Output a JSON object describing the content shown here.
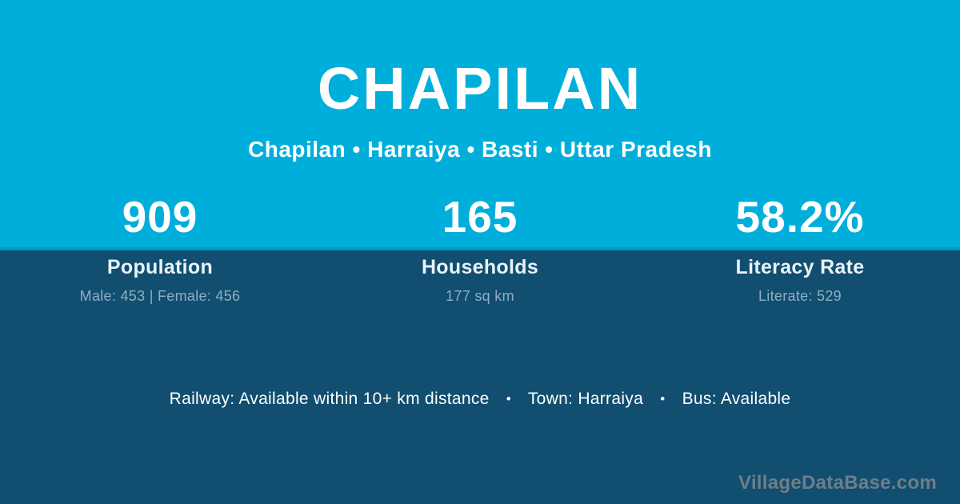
{
  "header": {
    "title": "CHAPILAN",
    "breadcrumb": "Chapilan • Harraiya • Basti • Uttar Pradesh"
  },
  "stats": [
    {
      "value": "909",
      "label": "Population",
      "detail": "Male: 453 | Female: 456"
    },
    {
      "value": "165",
      "label": "Households",
      "detail": "177 sq km"
    },
    {
      "value": "58.2%",
      "label": "Literacy Rate",
      "detail": "Literate: 529"
    }
  ],
  "facilities": {
    "railway": "Railway: Available within 10+ km distance",
    "separator": "•",
    "town": "Town: Harraiya",
    "bus": "Bus: Available"
  },
  "watermark": "VillageDataBase.com",
  "colors": {
    "top_background": "#00AEDB",
    "bottom_background": "#114E70",
    "primary_text": "#FFFFFF",
    "label_text": "#E9F2F7",
    "detail_text": "#8FAEC2",
    "watermark_text": "#6E7E88"
  }
}
